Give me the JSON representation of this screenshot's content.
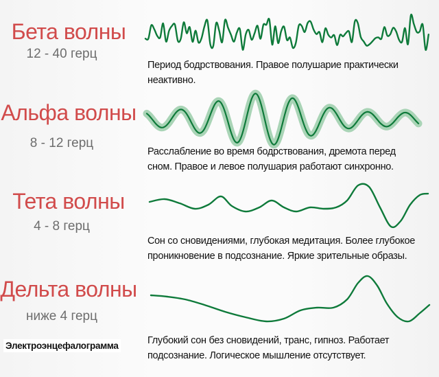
{
  "waves": [
    {
      "title": "Бета волны",
      "frequency": "12 - 40 герц",
      "description_line1": "Период бодрствования. Правое полушарие практически",
      "description_line2": "неактивно."
    },
    {
      "title": "Альфа волны",
      "frequency": "8 - 12 герц",
      "description_line1": "Расслабление во время бодрствования, дремота перед",
      "description_line2": "сном. Правое и левое полушария работают синхронно."
    },
    {
      "title": "Тета волны",
      "frequency": "4 - 8 герц",
      "description_line1": "Сон со сновидениями, глубокая медитация. Более глубокое",
      "description_line2": "проникновение в подсознание. Яркие зрительные образы."
    },
    {
      "title": "Дельта волны",
      "frequency": "ниже 4 герц",
      "description_line1": "Глубокий сон без сновидений, транс, гипноз. Работает",
      "description_line2": "подсознание. Логическое мышление отсутствует."
    }
  ],
  "footer_label": "Электроэнцефалограмма",
  "colors": {
    "title": "#d14b4b",
    "frequency": "#6d6d6d",
    "wave_line": "#0e7a3a",
    "alpha_glow": "#a9d4b6"
  }
}
